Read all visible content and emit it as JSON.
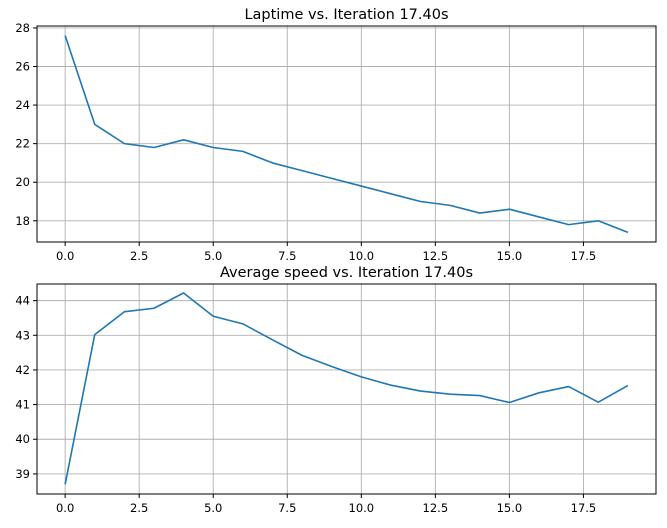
{
  "chart_data": [
    {
      "type": "line",
      "title": "Laptime vs. Iteration 17.40s",
      "xlabel": "",
      "ylabel": "",
      "xlim": [
        -0.95,
        19.95
      ],
      "ylim": [
        16.9,
        28.1
      ],
      "xticks": [
        0.0,
        2.5,
        5.0,
        7.5,
        10.0,
        12.5,
        15.0,
        17.5
      ],
      "xtick_labels": [
        "0.0",
        "2.5",
        "5.0",
        "7.5",
        "10.0",
        "12.5",
        "15.0",
        "17.5"
      ],
      "yticks": [
        18,
        20,
        22,
        24,
        26,
        28
      ],
      "ytick_labels": [
        "18",
        "20",
        "22",
        "24",
        "26",
        "28"
      ],
      "grid": true,
      "color": "#1f77b4",
      "series": [
        {
          "x": [
            0,
            1,
            2,
            3,
            4,
            5,
            6,
            7,
            8,
            9,
            10,
            11,
            12,
            13,
            14,
            15,
            16,
            17,
            18,
            19
          ],
          "values": [
            27.6,
            23.0,
            22.0,
            21.8,
            22.2,
            21.8,
            21.6,
            21.0,
            20.6,
            20.2,
            19.8,
            19.4,
            19.0,
            18.8,
            18.4,
            18.6,
            18.2,
            17.8,
            18.0,
            17.4
          ]
        }
      ]
    },
    {
      "type": "line",
      "title": "Average speed vs. Iteration 17.40s",
      "xlabel": "",
      "ylabel": "",
      "xlim": [
        -0.95,
        19.95
      ],
      "ylim": [
        38.42,
        44.48
      ],
      "xticks": [
        0.0,
        2.5,
        5.0,
        7.5,
        10.0,
        12.5,
        15.0,
        17.5
      ],
      "xtick_labels": [
        "0.0",
        "2.5",
        "5.0",
        "7.5",
        "10.0",
        "12.5",
        "15.0",
        "17.5"
      ],
      "yticks": [
        39,
        40,
        41,
        42,
        43,
        44
      ],
      "ytick_labels": [
        "39",
        "40",
        "41",
        "42",
        "43",
        "44"
      ],
      "grid": true,
      "color": "#1f77b4",
      "series": [
        {
          "x": [
            0,
            1,
            2,
            3,
            4,
            5,
            6,
            7,
            8,
            9,
            10,
            11,
            12,
            13,
            14,
            15,
            16,
            17,
            18,
            19
          ],
          "values": [
            38.7,
            43.02,
            43.68,
            43.78,
            44.22,
            43.55,
            43.33,
            42.87,
            42.42,
            42.1,
            41.8,
            41.56,
            41.39,
            41.3,
            41.26,
            41.06,
            41.34,
            41.52,
            41.07,
            41.55
          ]
        }
      ]
    }
  ]
}
